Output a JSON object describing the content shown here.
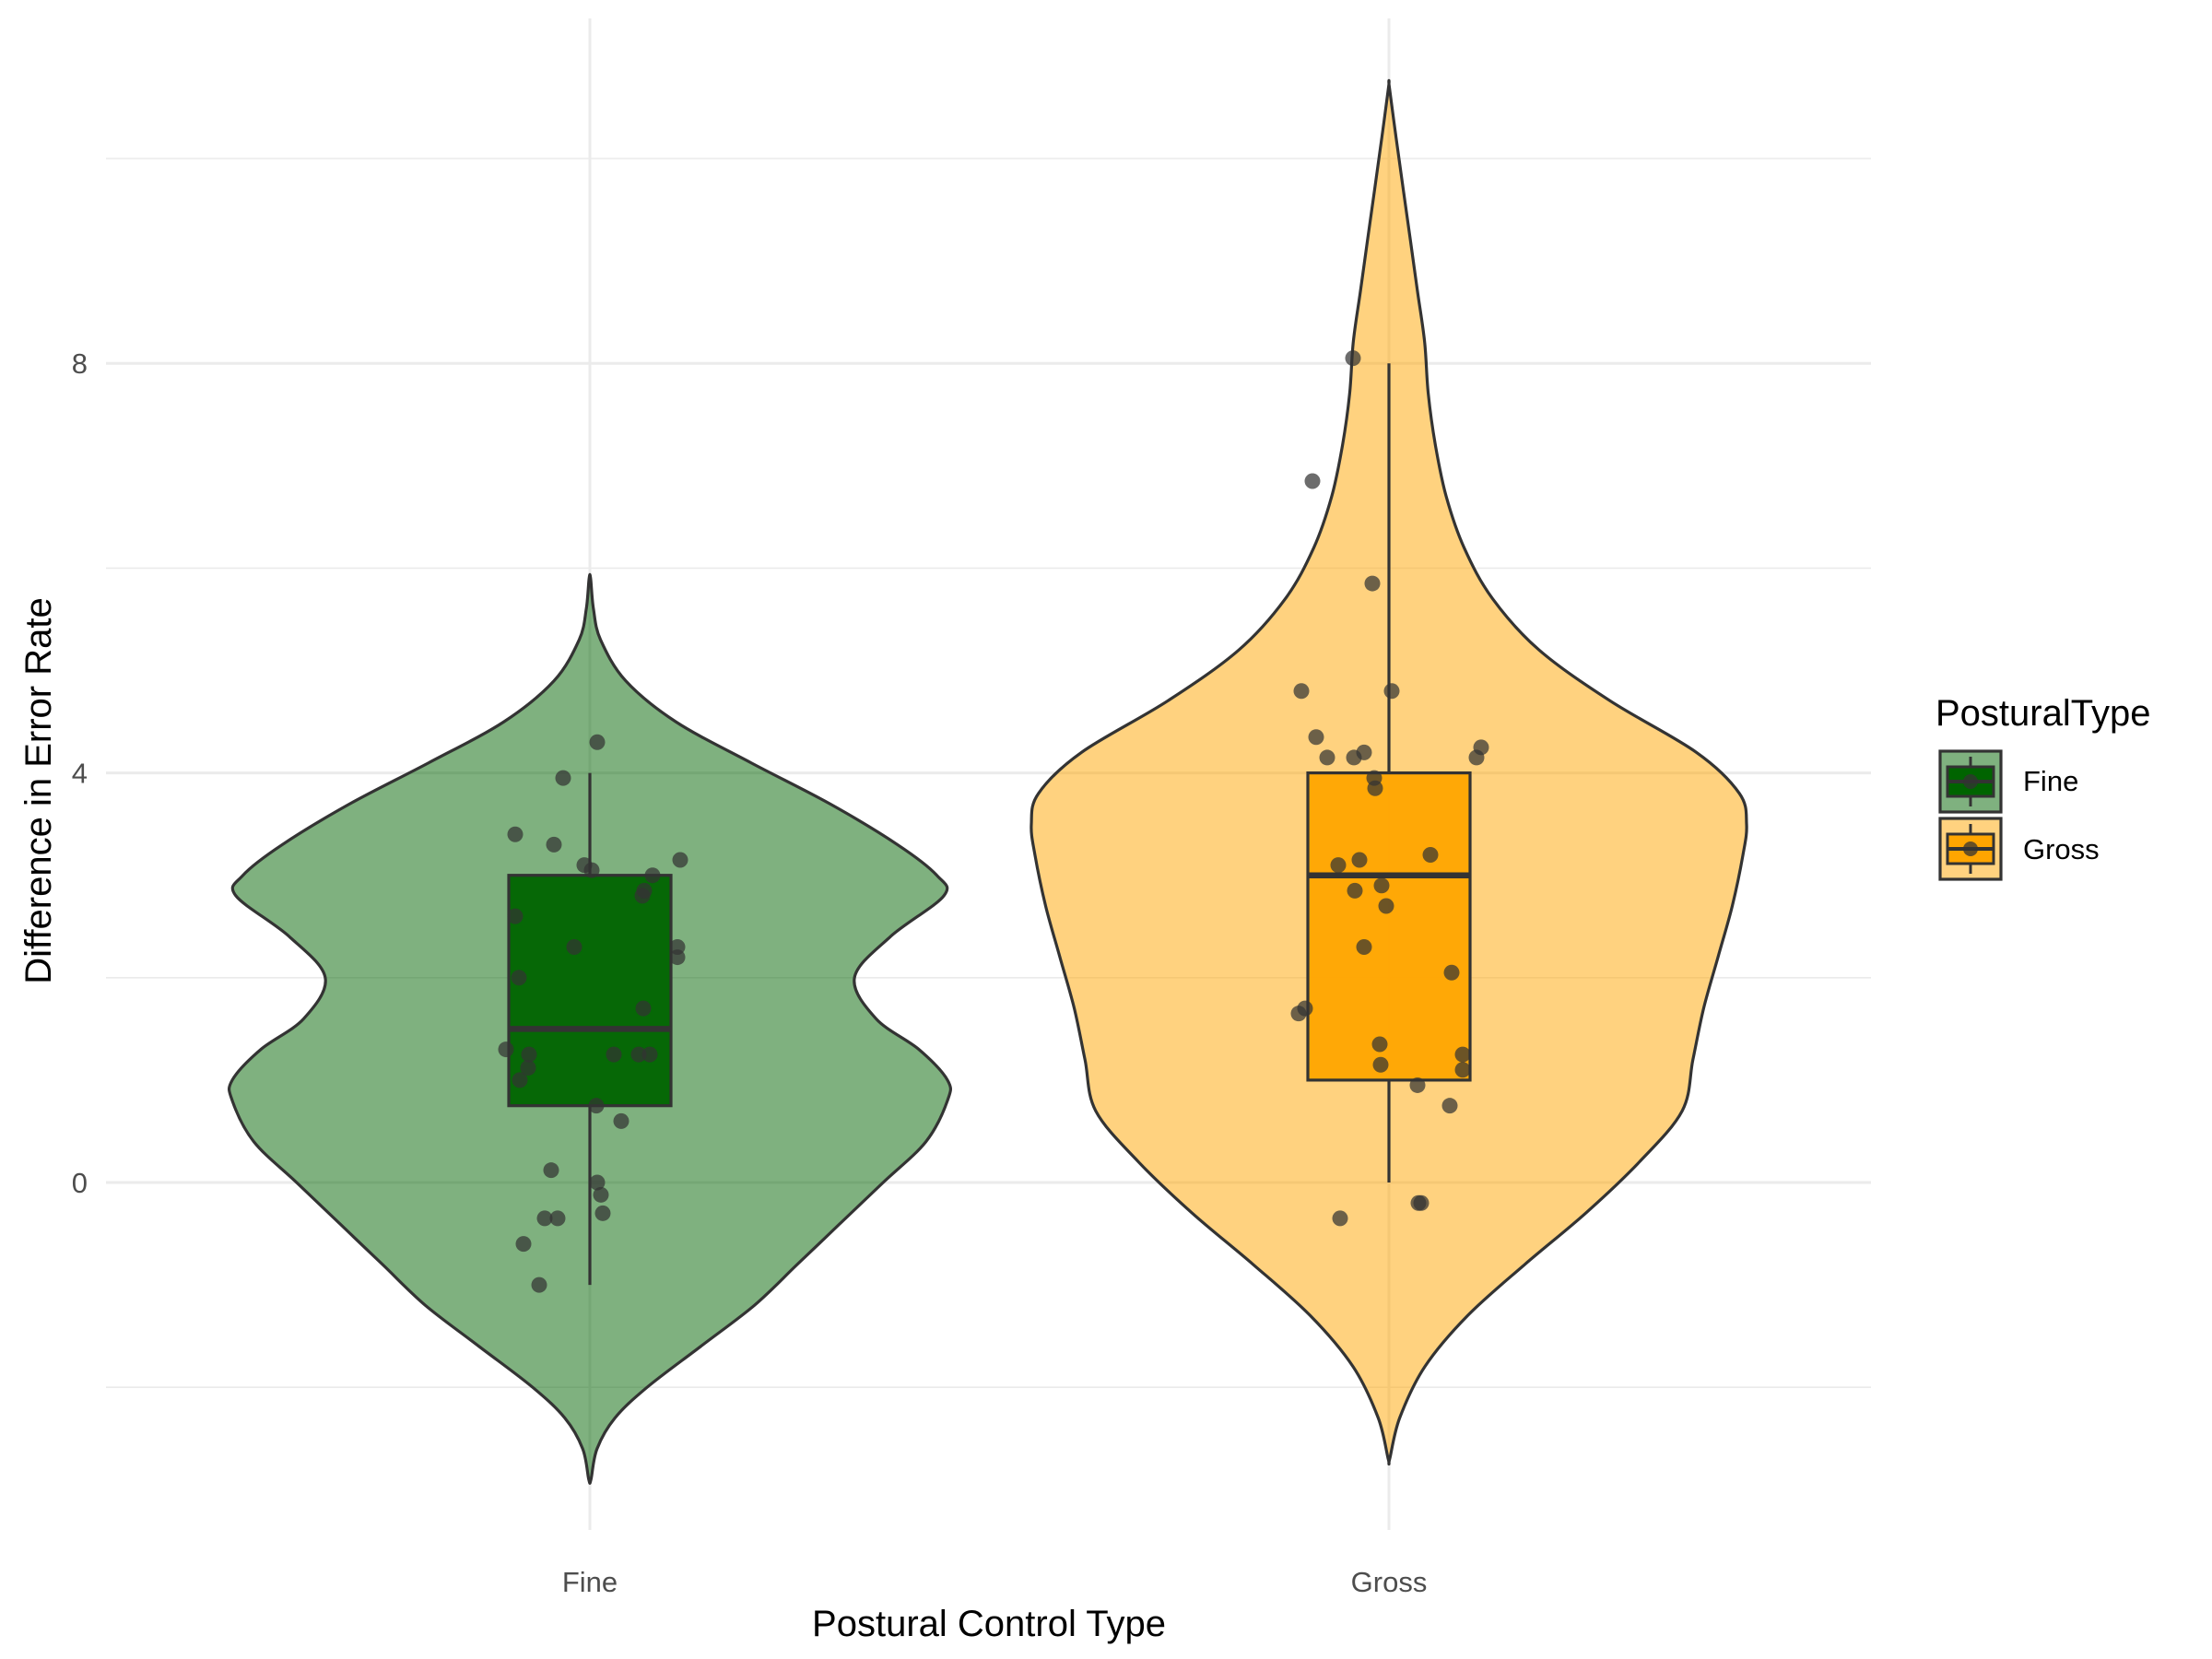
{
  "chart_data": {
    "type": "violin",
    "title": "",
    "xlabel": "Postural Control Type",
    "ylabel": "Difference in Error Rate",
    "categories": [
      "Fine",
      "Gross"
    ],
    "ylim": [
      -2.95,
      10.9
    ],
    "y_ticks": [
      0,
      4,
      8
    ],
    "y_tick_labels": [
      "0",
      "4",
      "8"
    ],
    "grid": true,
    "legend": {
      "title": "PosturalType",
      "position": "right",
      "entries": [
        "Fine",
        "Gross"
      ]
    },
    "colors": {
      "Fine": "#006400",
      "Gross": "#FFA500",
      "outline": "#333333",
      "points": "#333333"
    },
    "series": [
      {
        "name": "Fine",
        "violin_extent": [
          -2.9,
          5.9
        ],
        "violin_density": [
          [
            -2.9,
            0.003
          ],
          [
            -2.6,
            0.02
          ],
          [
            -2.3,
            0.07
          ],
          [
            -2.0,
            0.16
          ],
          [
            -1.6,
            0.31
          ],
          [
            -1.2,
            0.46
          ],
          [
            -0.8,
            0.58
          ],
          [
            -0.4,
            0.7
          ],
          [
            0.0,
            0.82
          ],
          [
            0.4,
            0.94
          ],
          [
            0.8,
            1.0
          ],
          [
            1.0,
            1.0
          ],
          [
            1.3,
            0.92
          ],
          [
            1.6,
            0.8
          ],
          [
            2.0,
            0.74
          ],
          [
            2.4,
            0.84
          ],
          [
            2.8,
            0.99
          ],
          [
            3.0,
            0.97
          ],
          [
            3.3,
            0.86
          ],
          [
            3.7,
            0.67
          ],
          [
            4.1,
            0.45
          ],
          [
            4.5,
            0.24
          ],
          [
            4.9,
            0.1
          ],
          [
            5.3,
            0.03
          ],
          [
            5.6,
            0.01
          ],
          [
            5.9,
            0.002
          ]
        ],
        "box": {
          "min": -1.0,
          "q1": 0.75,
          "median": 1.5,
          "q3": 3.0,
          "max": 4.0
        },
        "points": [
          [
            -1.0,
            -0.55
          ],
          [
            -0.6,
            -0.72
          ],
          [
            -0.35,
            -0.49
          ],
          [
            -0.35,
            -0.35
          ],
          [
            0.12,
            -0.42
          ],
          [
            -0.12,
            0.12
          ],
          [
            -0.3,
            0.14
          ],
          [
            0.0,
            0.08
          ],
          [
            0.6,
            0.34
          ],
          [
            0.75,
            0.07
          ],
          [
            1.0,
            -0.76
          ],
          [
            1.3,
            -0.91
          ],
          [
            1.25,
            -0.66
          ],
          [
            1.12,
            -0.67
          ],
          [
            1.25,
            0.26
          ],
          [
            1.25,
            0.53
          ],
          [
            1.25,
            0.65
          ],
          [
            1.7,
            0.58
          ],
          [
            2.0,
            -0.77
          ],
          [
            2.2,
            0.95
          ],
          [
            2.3,
            0.95
          ],
          [
            2.3,
            -0.17
          ],
          [
            2.6,
            -0.81
          ],
          [
            2.8,
            0.57
          ],
          [
            2.85,
            0.59
          ],
          [
            3.0,
            0.68
          ],
          [
            3.05,
            0.02
          ],
          [
            3.1,
            -0.06
          ],
          [
            3.15,
            0.98
          ],
          [
            3.3,
            -0.39
          ],
          [
            3.4,
            -0.81
          ],
          [
            3.95,
            -0.29
          ],
          [
            4.3,
            0.08
          ]
        ]
      },
      {
        "name": "Gross",
        "violin_extent": [
          -2.7,
          10.7
        ],
        "violin_density": [
          [
            -2.7,
            0.002
          ],
          [
            -2.3,
            0.03
          ],
          [
            -1.8,
            0.1
          ],
          [
            -1.3,
            0.22
          ],
          [
            -0.8,
            0.38
          ],
          [
            -0.3,
            0.55
          ],
          [
            0.2,
            0.7
          ],
          [
            0.7,
            0.82
          ],
          [
            1.2,
            0.85
          ],
          [
            1.7,
            0.88
          ],
          [
            2.2,
            0.92
          ],
          [
            2.7,
            0.96
          ],
          [
            3.2,
            0.99
          ],
          [
            3.5,
            1.0
          ],
          [
            3.8,
            0.98
          ],
          [
            4.2,
            0.86
          ],
          [
            4.7,
            0.62
          ],
          [
            5.2,
            0.42
          ],
          [
            5.7,
            0.29
          ],
          [
            6.2,
            0.21
          ],
          [
            6.7,
            0.16
          ],
          [
            7.2,
            0.13
          ],
          [
            7.7,
            0.11
          ],
          [
            8.2,
            0.1
          ],
          [
            8.7,
            0.08
          ],
          [
            9.2,
            0.06
          ],
          [
            9.7,
            0.04
          ],
          [
            10.2,
            0.02
          ],
          [
            10.7,
            0.001
          ]
        ],
        "box": {
          "min": 0.0,
          "q1": 1.0,
          "median": 3.0,
          "q3": 4.0,
          "max": 8.0
        },
        "points": [
          [
            -0.35,
            -0.53
          ],
          [
            -0.2,
            0.32
          ],
          [
            -0.2,
            0.35
          ],
          [
            0.75,
            0.66
          ],
          [
            0.95,
            0.31
          ],
          [
            1.1,
            0.8
          ],
          [
            1.25,
            0.8
          ],
          [
            1.15,
            -0.09
          ],
          [
            1.35,
            -0.1
          ],
          [
            1.65,
            -0.98
          ],
          [
            1.7,
            -0.91
          ],
          [
            2.05,
            0.68
          ],
          [
            2.3,
            -0.27
          ],
          [
            2.7,
            -0.03
          ],
          [
            2.85,
            -0.37
          ],
          [
            2.9,
            -0.08
          ],
          [
            3.1,
            -0.55
          ],
          [
            3.15,
            -0.32
          ],
          [
            3.2,
            0.45
          ],
          [
            3.85,
            -0.15
          ],
          [
            3.95,
            -0.16
          ],
          [
            4.15,
            -0.67
          ],
          [
            4.15,
            -0.38
          ],
          [
            4.15,
            0.95
          ],
          [
            4.2,
            -0.27
          ],
          [
            4.25,
            1.0
          ],
          [
            4.35,
            -0.79
          ],
          [
            4.8,
            -0.95
          ],
          [
            4.8,
            0.03
          ],
          [
            5.85,
            -0.18
          ],
          [
            6.85,
            -0.83
          ],
          [
            8.05,
            -0.39
          ]
        ]
      }
    ]
  }
}
